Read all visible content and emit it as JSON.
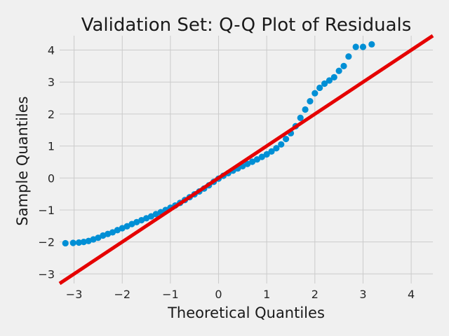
{
  "chart_data": {
    "type": "scatter",
    "title": "Validation Set: Q-Q Plot of Residuals",
    "xlabel": "Theoretical Quantiles",
    "ylabel": "Sample Quantiles",
    "xlim": [
      -3.3,
      4.45
    ],
    "ylim": [
      -3.3,
      4.45
    ],
    "x_ticks": [
      -3,
      -2,
      -1,
      0,
      1,
      2,
      3,
      4
    ],
    "y_ticks": [
      -3,
      -2,
      -1,
      0,
      1,
      2,
      3,
      4
    ],
    "x_tick_labels": [
      "−3",
      "−2",
      "−1",
      "0",
      "1",
      "2",
      "3",
      "4"
    ],
    "y_tick_labels": [
      "−3",
      "−2",
      "−1",
      "0",
      "1",
      "2",
      "3",
      "4"
    ],
    "grid": true,
    "series": [
      {
        "kind": "points",
        "color": "#008fd5",
        "x": [
          -3.18,
          -3.02,
          -2.9,
          -2.8,
          -2.7,
          -2.6,
          -2.5,
          -2.4,
          -2.3,
          -2.2,
          -2.1,
          -2.0,
          -1.9,
          -1.8,
          -1.7,
          -1.6,
          -1.5,
          -1.4,
          -1.3,
          -1.2,
          -1.1,
          -1.0,
          -0.9,
          -0.8,
          -0.7,
          -0.6,
          -0.5,
          -0.4,
          -0.3,
          -0.2,
          -0.1,
          0.0,
          0.1,
          0.2,
          0.3,
          0.4,
          0.5,
          0.6,
          0.7,
          0.8,
          0.9,
          1.0,
          1.1,
          1.2,
          1.3,
          1.4,
          1.5,
          1.6,
          1.7,
          1.8,
          1.9,
          2.0,
          2.1,
          2.2,
          2.3,
          2.4,
          2.5,
          2.6,
          2.7,
          2.85,
          3.0,
          3.18
        ],
        "y": [
          -2.04,
          -2.03,
          -2.02,
          -2.0,
          -1.97,
          -1.92,
          -1.87,
          -1.8,
          -1.75,
          -1.7,
          -1.63,
          -1.57,
          -1.51,
          -1.44,
          -1.38,
          -1.32,
          -1.26,
          -1.2,
          -1.13,
          -1.07,
          -1.0,
          -0.93,
          -0.86,
          -0.78,
          -0.69,
          -0.6,
          -0.51,
          -0.42,
          -0.33,
          -0.23,
          -0.12,
          -0.02,
          0.07,
          0.15,
          0.23,
          0.3,
          0.37,
          0.44,
          0.51,
          0.58,
          0.66,
          0.74,
          0.83,
          0.93,
          1.05,
          1.22,
          1.4,
          1.62,
          1.88,
          2.14,
          2.4,
          2.65,
          2.82,
          2.95,
          3.05,
          3.15,
          3.35,
          3.5,
          3.8,
          4.1,
          4.1,
          4.18
        ]
      },
      {
        "kind": "line",
        "color": "#e50000",
        "x": [
          -3.3,
          4.45
        ],
        "y": [
          -3.3,
          4.45
        ]
      }
    ]
  }
}
